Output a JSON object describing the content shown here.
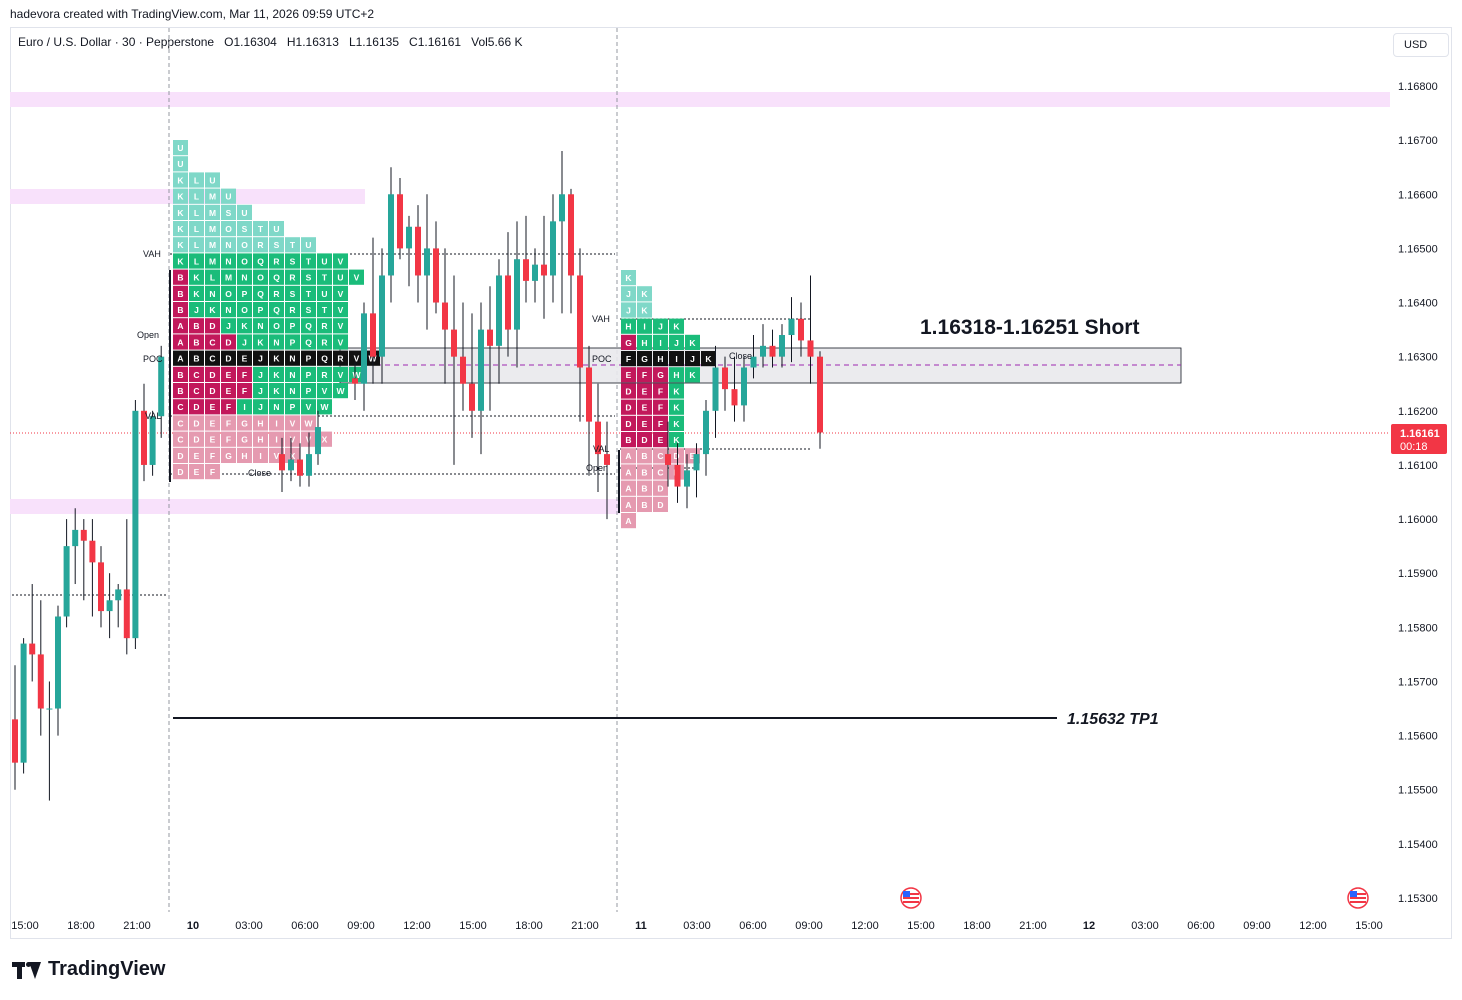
{
  "header": {
    "author_line": "hadevora created with TradingView.com, Mar 11, 2026 09:59 UTC+2"
  },
  "legend": {
    "symbol": "Euro / U.S. Dollar · 30 · Pepperstone",
    "o_label": "O",
    "o": "1.16304",
    "h_label": "H",
    "h": "1.16313",
    "l_label": "L",
    "l": "1.16135",
    "c_label": "C",
    "c": "1.16161",
    "vol_label": "Vol",
    "vol": "5.66 K"
  },
  "currency": "USD",
  "price_tag": {
    "price": "1.16161",
    "timer": "00:18"
  },
  "annotations": {
    "short_text": "1.16318-1.16251 Short",
    "tp_text": "1.15632 TP1"
  },
  "profile_labels": {
    "vah": "VAH",
    "val": "VAL",
    "poc": "POC",
    "open": "Open",
    "close": "Close"
  },
  "logo_text": "TradingView",
  "colors": {
    "up": "#26a69a",
    "down": "#f23645",
    "zone": "#f8e1fb",
    "short_box": "#e9e9ec",
    "grid": "#e0e3eb"
  },
  "chart_data": {
    "type": "candlestick",
    "title": "",
    "y_ticks": [
      "1.16800",
      "1.16700",
      "1.16600",
      "1.16500",
      "1.16400",
      "1.16300",
      "1.16200",
      "1.16100",
      "1.16000",
      "1.15900",
      "1.15800",
      "1.15700",
      "1.15600",
      "1.15500",
      "1.15400",
      "1.15300"
    ],
    "y_range": [
      1.1525,
      1.169
    ],
    "x_ticks": [
      "15:00",
      "18:00",
      "21:00",
      "10",
      "03:00",
      "06:00",
      "09:00",
      "12:00",
      "15:00",
      "18:00",
      "21:00",
      "11",
      "03:00",
      "06:00",
      "09:00",
      "12:00",
      "15:00",
      "18:00",
      "21:00",
      "12",
      "03:00",
      "06:00",
      "09:00",
      "12:00",
      "15:00"
    ],
    "zones": [
      {
        "name": "supply-zone-top",
        "from": 1.16765,
        "to": 1.1679
      },
      {
        "name": "supply-zone-mid",
        "from": 1.1658,
        "to": 1.16605
      },
      {
        "name": "demand-zone",
        "from": 1.16015,
        "to": 1.1604
      }
    ],
    "short_zone": {
      "from": 1.16251,
      "to": 1.16318
    },
    "tp1": 1.15632,
    "current_price": 1.16161,
    "candles": [
      [
        1.1563,
        1.1573,
        1.155,
        1.1555
      ],
      [
        1.1555,
        1.1578,
        1.1553,
        1.1577
      ],
      [
        1.1577,
        1.1588,
        1.157,
        1.1575
      ],
      [
        1.1575,
        1.1585,
        1.156,
        1.1565
      ],
      [
        1.1565,
        1.157,
        1.1548,
        1.1565
      ],
      [
        1.1565,
        1.1584,
        1.156,
        1.1582
      ],
      [
        1.1582,
        1.16,
        1.158,
        1.1595
      ],
      [
        1.1595,
        1.1602,
        1.1588,
        1.1598
      ],
      [
        1.1598,
        1.16,
        1.1585,
        1.1596
      ],
      [
        1.1596,
        1.16,
        1.1582,
        1.1592
      ],
      [
        1.1592,
        1.1595,
        1.158,
        1.1583
      ],
      [
        1.1583,
        1.159,
        1.1578,
        1.1585
      ],
      [
        1.1585,
        1.1588,
        1.158,
        1.1587
      ],
      [
        1.1587,
        1.16,
        1.1575,
        1.1578
      ],
      [
        1.1578,
        1.1622,
        1.1576,
        1.162
      ],
      [
        1.162,
        1.1625,
        1.1607,
        1.161
      ],
      [
        1.161,
        1.162,
        1.1608,
        1.1619
      ],
      [
        1.1619,
        1.1632,
        1.1615,
        1.163
      ]
    ]
  }
}
